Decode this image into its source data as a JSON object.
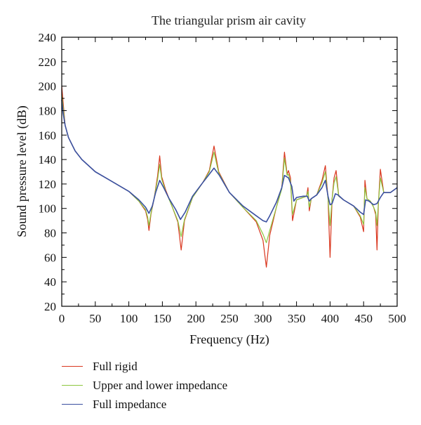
{
  "chart_data": {
    "type": "line",
    "title": "The triangular prism air cavity",
    "xlabel": "Frequency (Hz)",
    "ylabel": "Sound pressure level (dB)",
    "xlim": [
      0,
      500
    ],
    "ylim": [
      20,
      240
    ],
    "xticks": [
      "0",
      "50",
      "100",
      "150",
      "200",
      "250",
      "300",
      "350",
      "400",
      "450",
      "500"
    ],
    "yticks": [
      "20",
      "40",
      "60",
      "80",
      "100",
      "120",
      "140",
      "160",
      "180",
      "200",
      "220",
      "240"
    ],
    "grid": false,
    "legend_position": "bottom",
    "series": [
      {
        "name": "Full rigid",
        "color": "#d9361e",
        "x": [
          0,
          5,
          10,
          20,
          30,
          50,
          75,
          100,
          115,
          125,
          128,
          130,
          133,
          138,
          143,
          146,
          149,
          155,
          165,
          173,
          178,
          183,
          195,
          210,
          220,
          227,
          234,
          250,
          270,
          290,
          300,
          305,
          310,
          320,
          328,
          332,
          336,
          338,
          341,
          344,
          350,
          360,
          365,
          367,
          369,
          372,
          380,
          388,
          393,
          397,
          400,
          403,
          406,
          409,
          413,
          420,
          435,
          445,
          450,
          452,
          455,
          460,
          465,
          468,
          470,
          472,
          475,
          480,
          490,
          500
        ],
        "y": [
          200,
          168,
          158,
          147,
          140,
          130,
          122,
          114,
          106,
          98,
          91,
          82,
          95,
          109,
          127,
          143,
          126,
          115,
          101,
          89,
          66,
          90,
          109,
          121,
          131,
          151,
          130,
          113,
          101,
          89,
          74,
          52,
          78,
          101,
          117,
          146,
          128,
          131,
          125,
          90,
          107,
          109,
          110,
          117,
          98,
          108,
          111,
          123,
          135,
          108,
          60,
          108,
          125,
          131,
          110,
          107,
          102,
          93,
          81,
          123,
          108,
          106,
          101,
          95,
          66,
          103,
          132,
          113,
          113,
          117
        ]
      },
      {
        "name": "Upper and lower impedance",
        "color": "#8cc63e",
        "x": [
          0,
          5,
          10,
          20,
          30,
          50,
          75,
          100,
          115,
          125,
          128,
          130,
          133,
          138,
          143,
          146,
          149,
          155,
          165,
          173,
          178,
          183,
          195,
          210,
          220,
          227,
          234,
          250,
          270,
          290,
          300,
          305,
          310,
          320,
          328,
          332,
          336,
          338,
          341,
          344,
          350,
          360,
          365,
          367,
          369,
          372,
          380,
          388,
          393,
          397,
          400,
          403,
          406,
          409,
          413,
          420,
          435,
          445,
          450,
          452,
          455,
          460,
          465,
          468,
          470,
          472,
          475,
          480,
          490,
          500
        ],
        "y": [
          193,
          168,
          158,
          147,
          140,
          130,
          122,
          114,
          106,
          99,
          93,
          86,
          96,
          109,
          124,
          136,
          124,
          114,
          101,
          90,
          77,
          91,
          109,
          121,
          130,
          146,
          129,
          113,
          101,
          90,
          79,
          72,
          82,
          101,
          116,
          141,
          127,
          128,
          122,
          95,
          107,
          109,
          110,
          114,
          101,
          108,
          111,
          121,
          130,
          108,
          86,
          108,
          121,
          126,
          110,
          107,
          102,
          94,
          87,
          117,
          108,
          106,
          101,
          97,
          86,
          104,
          125,
          113,
          113,
          117
        ]
      },
      {
        "name": "Full impedance",
        "color": "#3a4fa0",
        "x": [
          0,
          2,
          5,
          10,
          20,
          30,
          50,
          75,
          100,
          115,
          125,
          130,
          135,
          140,
          146,
          152,
          160,
          170,
          177,
          184,
          195,
          210,
          220,
          227,
          235,
          250,
          270,
          290,
          300,
          305,
          310,
          320,
          328,
          332,
          338,
          343,
          346,
          350,
          360,
          366,
          369,
          372,
          380,
          388,
          393,
          397,
          400,
          403,
          408,
          412,
          420,
          435,
          445,
          450,
          453,
          458,
          465,
          470,
          475,
          480,
          490,
          500
        ],
        "y": [
          189,
          178,
          168,
          158,
          147,
          140,
          130,
          122,
          114,
          107,
          101,
          96,
          102,
          113,
          123,
          117,
          108,
          99,
          91,
          97,
          110,
          121,
          128,
          133,
          127,
          113,
          102,
          94,
          90,
          89,
          94,
          105,
          117,
          127,
          125,
          118,
          106,
          109,
          110,
          110,
          106,
          108,
          111,
          117,
          123,
          110,
          103,
          104,
          112,
          111,
          107,
          102,
          97,
          95,
          107,
          106,
          103,
          104,
          109,
          113,
          113,
          117
        ]
      }
    ]
  }
}
